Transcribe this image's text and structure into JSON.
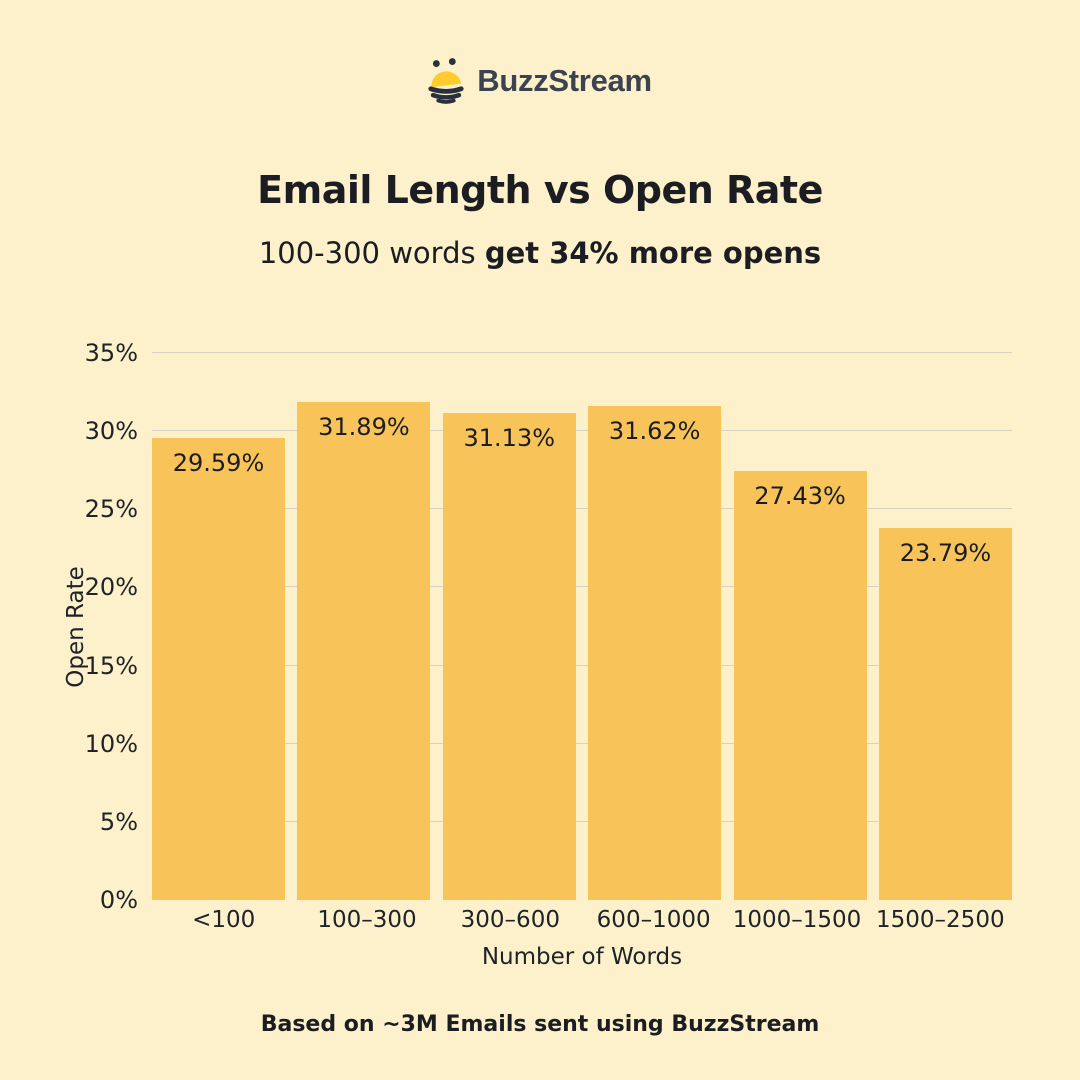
{
  "page": {
    "background": "#FCF1CB"
  },
  "logo": {
    "brand": "BuzzStream",
    "icon": "bee-icon",
    "text_color": "#3B4250",
    "bee_yellow": "#FFCB2E",
    "bee_dark": "#2A303B"
  },
  "header": {
    "title": "Email Length vs Open Rate",
    "subtitle_regular": "100-300 words ",
    "subtitle_bold": "get 34% more opens"
  },
  "chart_data": {
    "type": "bar",
    "title": "Email Length vs Open Rate",
    "categories": [
      "<100",
      "100–300",
      "300–600",
      "600–1000",
      "1000–1500",
      "1500–2500"
    ],
    "values": [
      29.59,
      31.89,
      31.13,
      31.62,
      27.43,
      23.79
    ],
    "value_labels": [
      "29.59%",
      "31.89%",
      "31.13%",
      "31.62%",
      "27.43%",
      "23.79%"
    ],
    "xlabel": "Number of Words",
    "ylabel": "Open Rate",
    "ylim": [
      0,
      35
    ],
    "yticks": [
      0,
      5,
      10,
      15,
      20,
      25,
      30,
      35
    ],
    "ytick_labels": [
      "0%",
      "5%",
      "10%",
      "15%",
      "20%",
      "25%",
      "30%",
      "35%"
    ],
    "grid": "horizontal",
    "gridline_ticks": [
      5,
      10,
      15,
      20,
      25,
      30,
      35
    ],
    "legend": "none",
    "bar_color": "#F8C45A",
    "gridline_color": "#D7D1BE",
    "label_color": "#1B1D22"
  },
  "footer": {
    "note": "Based on ~3M Emails sent using BuzzStream"
  }
}
